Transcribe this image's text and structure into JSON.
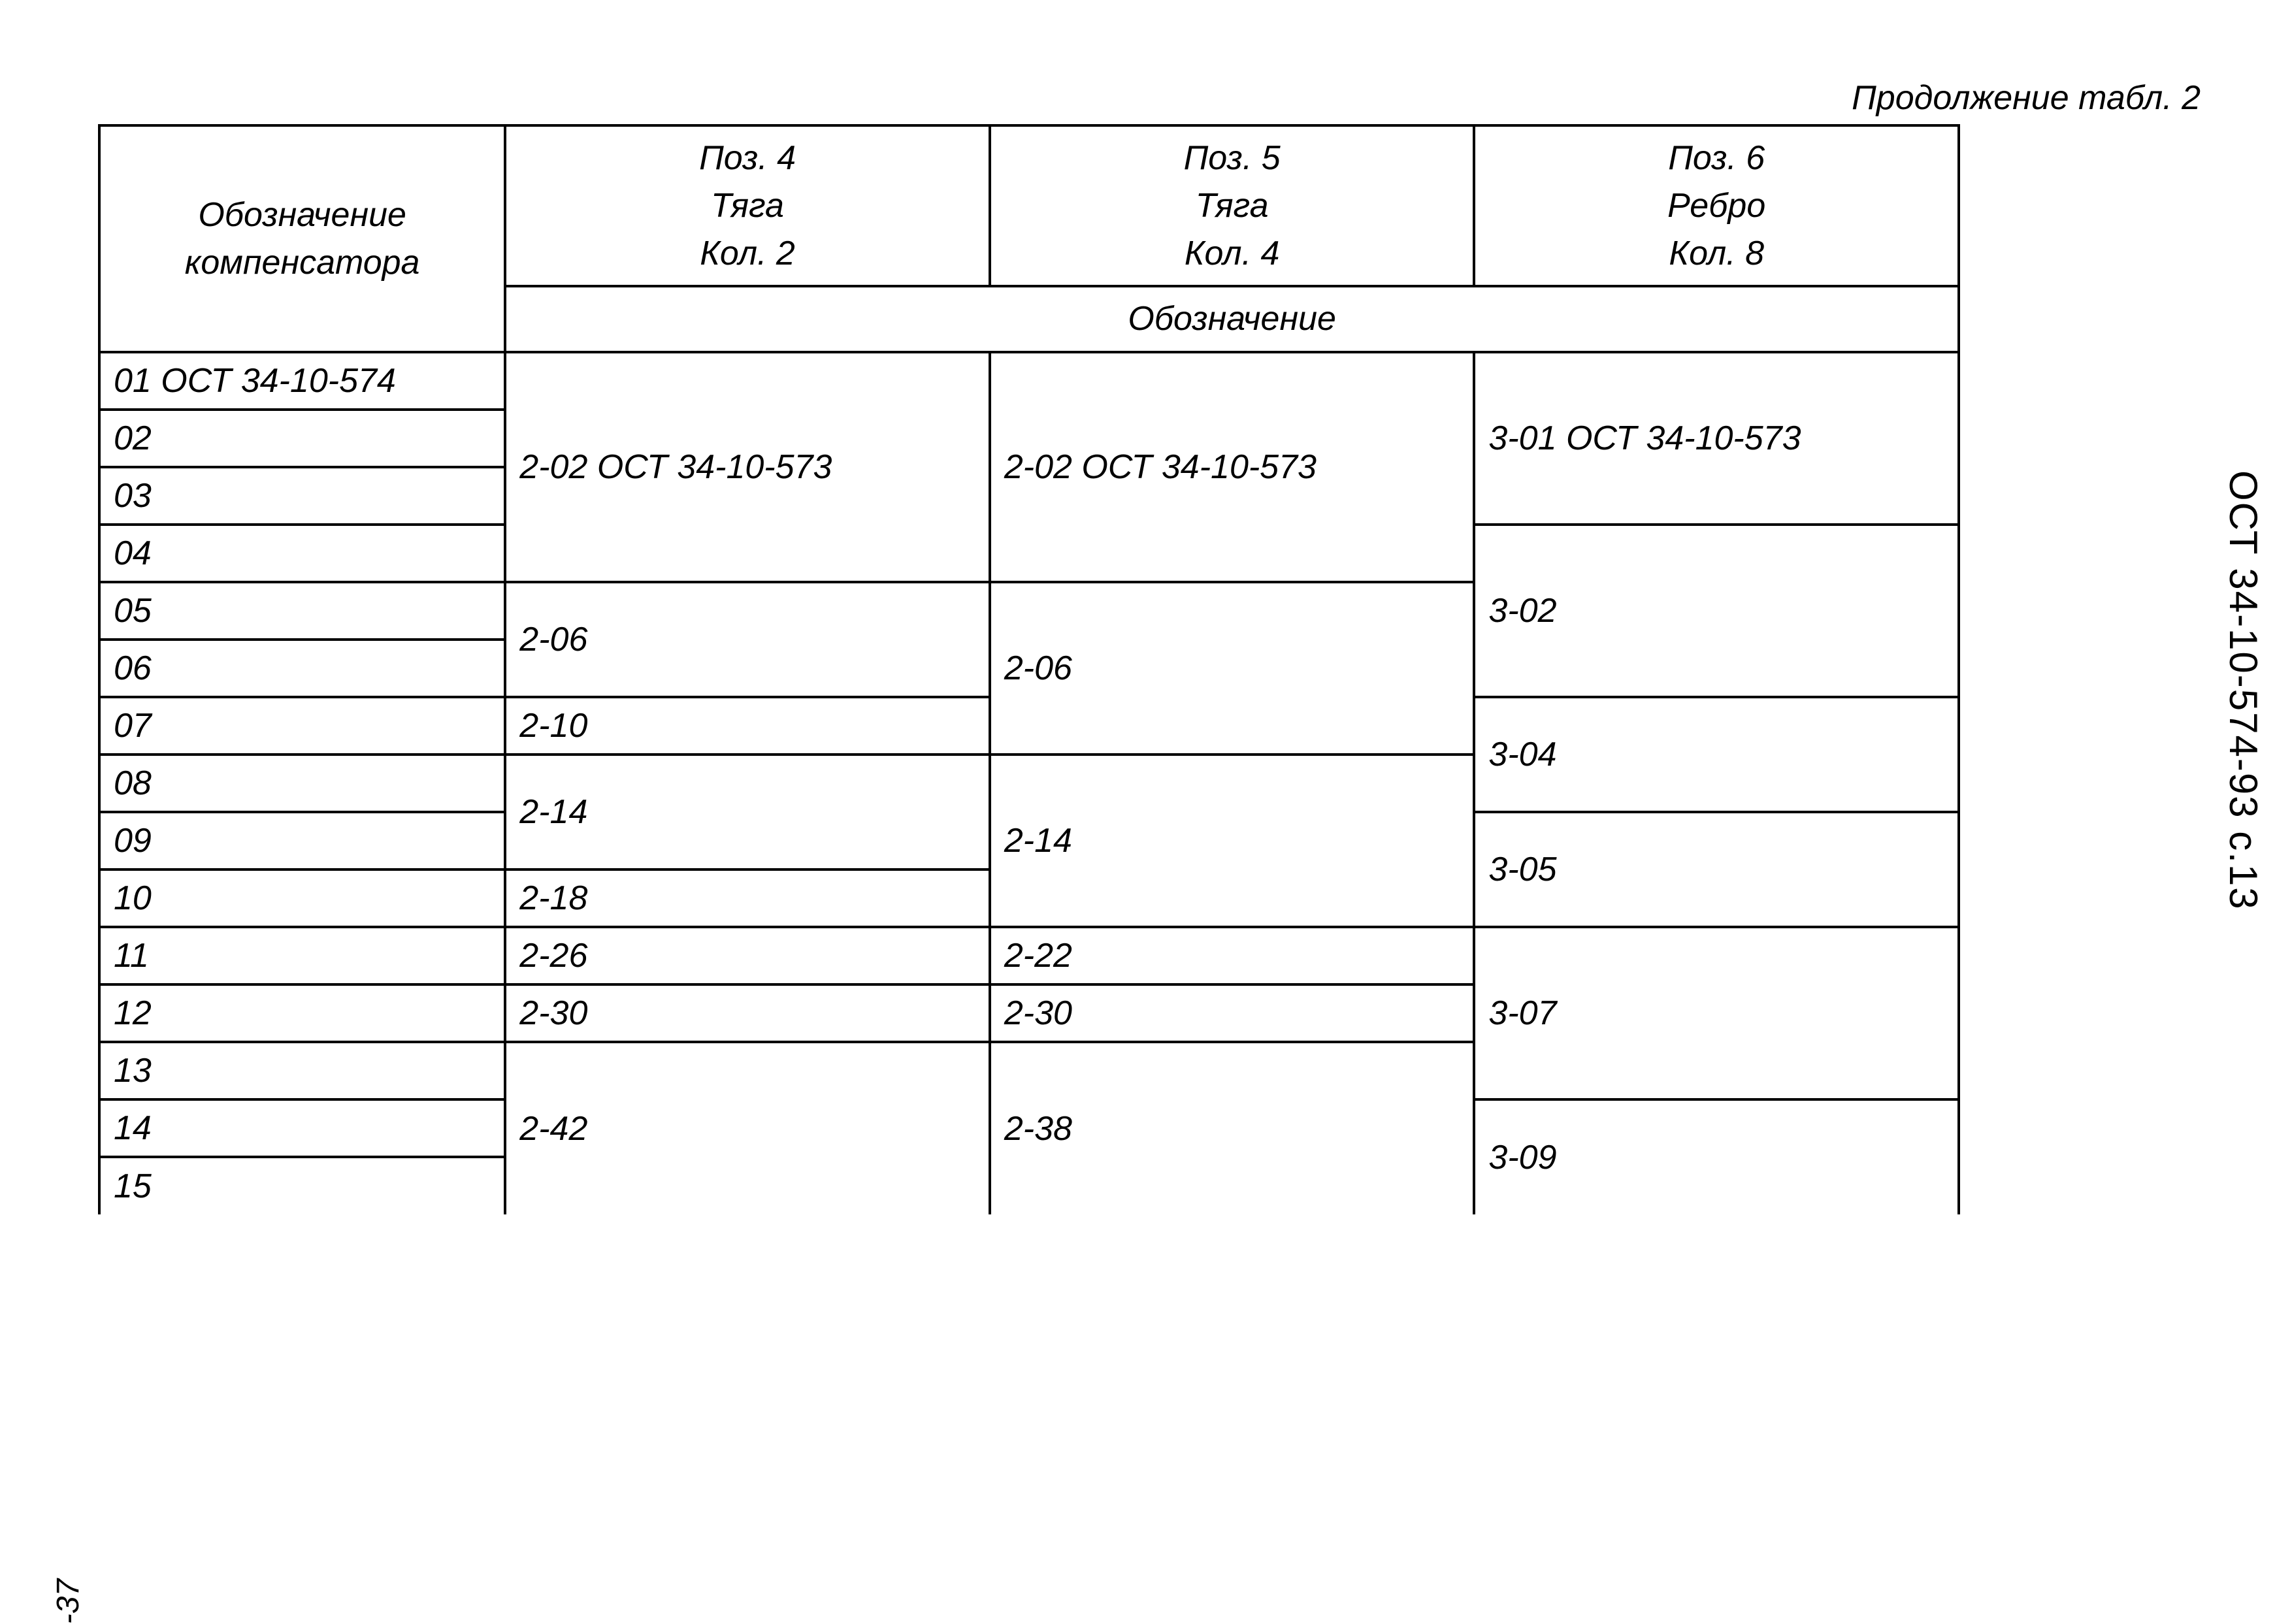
{
  "caption": "Продолжение табл. 2",
  "side_label": "ОСТ 34-10-574-93 с.13",
  "page_number": "-37",
  "headers": {
    "designation": "Обозначение\nкомпенсатора",
    "col1_line1": "Поз. 4",
    "col1_line2": "Тяга",
    "col1_line3": "Кол. 2",
    "col2_line1": "Поз. 5",
    "col2_line2": "Тяга",
    "col2_line3": "Кол. 4",
    "col3_line1": "Поз. 6",
    "col3_line2": "Ребро",
    "col3_line3": "Кол. 8",
    "sub_header": "Обозначение"
  },
  "rows": {
    "r01": "01 ОСТ 34-10-574",
    "r02": "02",
    "r03": "03",
    "r04": "04",
    "r05": "05",
    "r06": "06",
    "r07": "07",
    "r08": "08",
    "r09": "09",
    "r10": "10",
    "r11": "11",
    "r12": "12",
    "r13": "13",
    "r14": "14",
    "r15": "15"
  },
  "cells": {
    "c1_a": "2-02 ОСТ 34-10-573",
    "c1_b": "2-06",
    "c1_c": "2-10",
    "c1_d": "2-14",
    "c1_e": "2-18",
    "c1_f": "2-26",
    "c1_g": "2-30",
    "c1_h": "2-42",
    "c2_a": "2-02 ОСТ 34-10-573",
    "c2_b": "2-06",
    "c2_c": "2-14",
    "c2_d": "2-22",
    "c2_e": "2-30",
    "c2_f": "2-38",
    "c3_a": "3-01 ОСТ 34-10-573",
    "c3_b": "3-02",
    "c3_c": "3-04",
    "c3_d": "3-05",
    "c3_e": "3-07",
    "c3_f": "3-09"
  },
  "colors": {
    "background": "#ffffff",
    "text": "#000000",
    "border": "#000000"
  }
}
